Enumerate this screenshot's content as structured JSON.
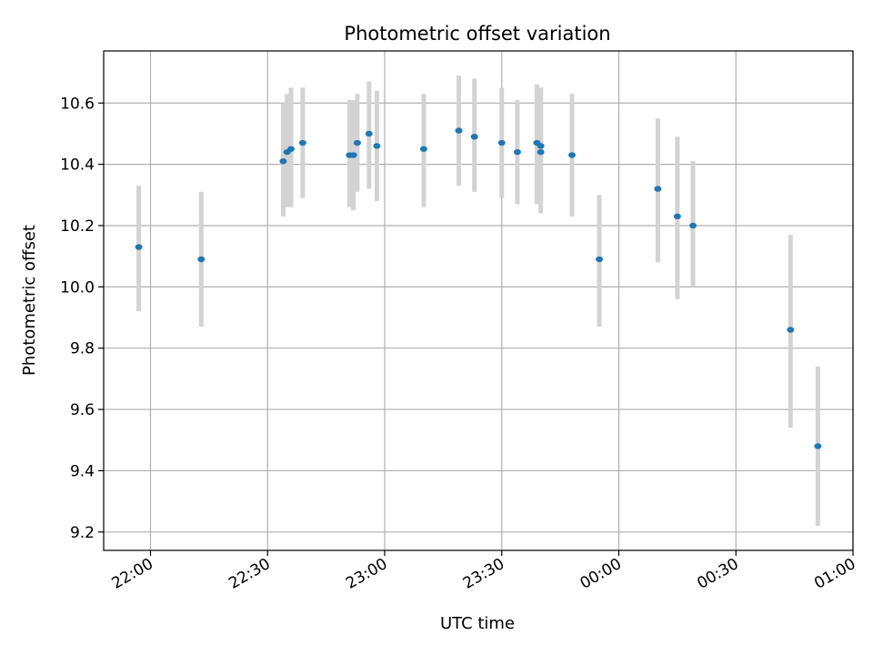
{
  "chart_data": {
    "type": "scatter",
    "title": "Photometric offset variation",
    "xlabel": "UTC time",
    "ylabel": "Photometric offset",
    "x_tick_labels": [
      "22:00",
      "22:30",
      "23:00",
      "23:30",
      "00:00",
      "00:30",
      "01:00"
    ],
    "y_tick_labels": [
      "9.2",
      "9.4",
      "9.6",
      "9.8",
      "10.0",
      "10.2",
      "10.4",
      "10.6"
    ],
    "y_ticks": [
      9.2,
      9.4,
      9.6,
      9.8,
      10.0,
      10.2,
      10.4,
      10.6
    ],
    "xlim": [
      "21:48",
      "01:00"
    ],
    "ylim": [
      9.14,
      10.77
    ],
    "grid": true,
    "colors": {
      "points": "#1f77b4",
      "errorbars": "#d3d3d3",
      "grid": "#b0b0b0"
    },
    "series": [
      {
        "points": [
          {
            "x": "21:57",
            "y": 10.13,
            "ylow": 9.92,
            "yhigh": 10.33
          },
          {
            "x": "22:13",
            "y": 10.09,
            "ylow": 9.87,
            "yhigh": 10.31
          },
          {
            "x": "22:34",
            "y": 10.41,
            "ylow": 10.23,
            "yhigh": 10.6
          },
          {
            "x": "22:35",
            "y": 10.44,
            "ylow": 10.26,
            "yhigh": 10.63
          },
          {
            "x": "22:36",
            "y": 10.45,
            "ylow": 10.26,
            "yhigh": 10.65
          },
          {
            "x": "22:39",
            "y": 10.47,
            "ylow": 10.29,
            "yhigh": 10.65
          },
          {
            "x": "22:51",
            "y": 10.43,
            "ylow": 10.26,
            "yhigh": 10.61
          },
          {
            "x": "22:52",
            "y": 10.43,
            "ylow": 10.25,
            "yhigh": 10.61
          },
          {
            "x": "22:53",
            "y": 10.47,
            "ylow": 10.31,
            "yhigh": 10.63
          },
          {
            "x": "22:56",
            "y": 10.5,
            "ylow": 10.32,
            "yhigh": 10.67
          },
          {
            "x": "22:58",
            "y": 10.46,
            "ylow": 10.28,
            "yhigh": 10.64
          },
          {
            "x": "23:10",
            "y": 10.45,
            "ylow": 10.26,
            "yhigh": 10.63
          },
          {
            "x": "23:19",
            "y": 10.51,
            "ylow": 10.33,
            "yhigh": 10.69
          },
          {
            "x": "23:23",
            "y": 10.49,
            "ylow": 10.31,
            "yhigh": 10.68
          },
          {
            "x": "23:30",
            "y": 10.47,
            "ylow": 10.29,
            "yhigh": 10.65
          },
          {
            "x": "23:34",
            "y": 10.44,
            "ylow": 10.27,
            "yhigh": 10.61
          },
          {
            "x": "23:39",
            "y": 10.47,
            "ylow": 10.27,
            "yhigh": 10.66
          },
          {
            "x": "23:40",
            "y": 10.46,
            "ylow": 10.27,
            "yhigh": 10.65
          },
          {
            "x": "23:40",
            "y": 10.44,
            "ylow": 10.24,
            "yhigh": 10.65
          },
          {
            "x": "23:48",
            "y": 10.43,
            "ylow": 10.23,
            "yhigh": 10.63
          },
          {
            "x": "23:55",
            "y": 10.09,
            "ylow": 9.87,
            "yhigh": 10.3
          },
          {
            "x": "00:10",
            "y": 10.32,
            "ylow": 10.08,
            "yhigh": 10.55
          },
          {
            "x": "00:15",
            "y": 10.23,
            "ylow": 9.96,
            "yhigh": 10.49
          },
          {
            "x": "00:19",
            "y": 10.2,
            "ylow": 10.0,
            "yhigh": 10.41
          },
          {
            "x": "00:44",
            "y": 9.86,
            "ylow": 9.54,
            "yhigh": 10.17
          },
          {
            "x": "00:51",
            "y": 9.48,
            "ylow": 9.22,
            "yhigh": 9.74
          }
        ]
      }
    ]
  }
}
